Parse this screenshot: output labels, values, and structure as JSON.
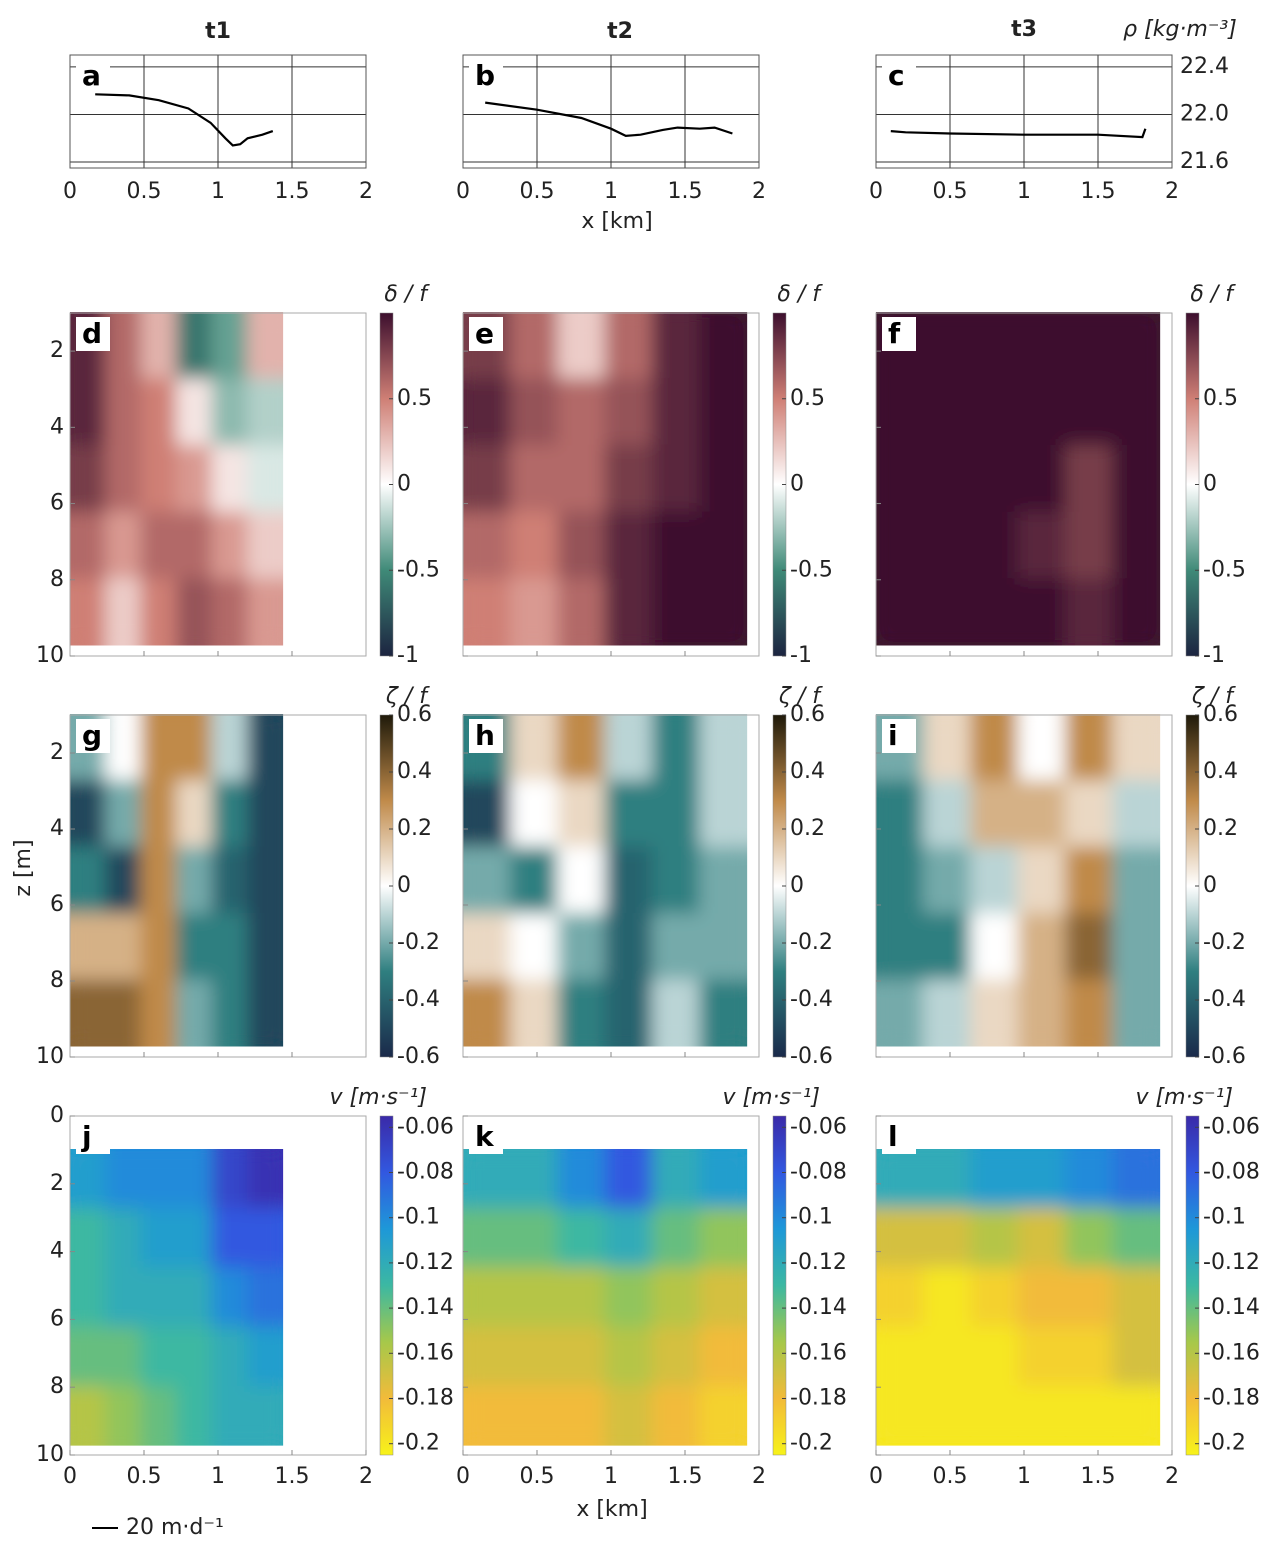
{
  "column_titles": [
    "t1",
    "t2",
    "t3"
  ],
  "x_label": "x [km]",
  "z_label": "z [m]",
  "quiver_key": "20 m·d⁻¹",
  "chart_data": [
    {
      "type": "line",
      "panel": "a",
      "color": "#000000",
      "grid": true,
      "x": [
        0.17,
        0.4,
        0.6,
        0.8,
        0.95,
        1.05,
        1.1,
        1.15,
        1.2,
        1.3,
        1.37
      ],
      "values": [
        22.17,
        22.16,
        22.12,
        22.05,
        21.93,
        21.8,
        21.74,
        21.75,
        21.8,
        21.83,
        21.86
      ],
      "xlim": [
        0,
        2
      ],
      "xticks": [
        0,
        0.5,
        1,
        1.5,
        2
      ],
      "ylim": [
        21.55,
        22.5
      ],
      "yticks": [
        21.6,
        {
          "value": 22,
          "label": "22.0"
        },
        22.4
      ]
    },
    {
      "type": "line",
      "panel": "b",
      "color": "#000000",
      "grid": true,
      "x": [
        0.15,
        0.5,
        0.8,
        1.0,
        1.1,
        1.2,
        1.35,
        1.45,
        1.6,
        1.7,
        1.82
      ],
      "values": [
        22.1,
        22.04,
        21.97,
        21.88,
        21.82,
        21.83,
        21.87,
        21.89,
        21.88,
        21.89,
        21.84
      ],
      "xlim": [
        0,
        2
      ],
      "xticks": [
        0,
        0.5,
        1,
        1.5,
        2
      ],
      "ylim": [
        21.55,
        22.5
      ],
      "yticks": [
        21.6,
        {
          "value": 22,
          "label": "22.0"
        },
        22.4
      ]
    },
    {
      "type": "line",
      "panel": "c",
      "color": "#000000",
      "grid": true,
      "y_label": "ρ [kg·m⁻³]",
      "x": [
        0.1,
        0.2,
        0.5,
        1,
        1.5,
        1.8,
        1.82
      ],
      "values": [
        21.86,
        21.85,
        21.84,
        21.83,
        21.83,
        21.81,
        21.88
      ],
      "xlim": [
        0,
        2
      ],
      "xticks": [
        0,
        0.5,
        1,
        1.5,
        2
      ],
      "ylim": [
        21.55,
        22.5
      ],
      "yticks": [
        21.6,
        {
          "value": 22,
          "label": "22.0"
        },
        22.4
      ]
    },
    {
      "type": "heatmap",
      "panel": "d",
      "x": [
        0.12,
        0.36,
        0.6,
        0.84,
        1.08,
        1.32
      ],
      "z": [
        1.85,
        3.6,
        5.35,
        7.1,
        8.85
      ],
      "values": [
        [
          0.9,
          0.6,
          0.3,
          -0.6,
          -0.4,
          0.3
        ],
        [
          0.9,
          0.6,
          0.5,
          0.1,
          -0.3,
          -0.2
        ],
        [
          0.8,
          0.6,
          0.5,
          0.4,
          0.1,
          -0.1
        ],
        [
          0.6,
          0.4,
          0.6,
          0.6,
          0.4,
          0.2
        ],
        [
          0.5,
          0.2,
          0.5,
          0.7,
          0.6,
          0.4
        ]
      ],
      "xlim": [
        0,
        2
      ],
      "xticks": [
        0.5,
        1,
        1.5
      ],
      "ylim": [
        10,
        1
      ],
      "yticks": [
        2,
        4,
        6,
        8,
        10
      ],
      "colorbar": {
        "label": "δ / f",
        "lim": [
          -1,
          1
        ],
        "ticks": [
          -1,
          -0.5,
          0,
          0.5
        ],
        "colormap": [
          "#1c2440",
          "#3f8a78",
          "#ffffff",
          "#cf7f75",
          "#3d0f2e"
        ]
      }
    },
    {
      "type": "heatmap",
      "panel": "e",
      "x": [
        0.16,
        0.48,
        0.8,
        1.12,
        1.44,
        1.76
      ],
      "z": [
        1.85,
        3.6,
        5.35,
        7.1,
        8.85
      ],
      "values": [
        [
          0.8,
          0.6,
          0.2,
          0.6,
          0.9,
          1
        ],
        [
          0.9,
          0.7,
          0.6,
          0.7,
          0.9,
          1
        ],
        [
          0.8,
          0.6,
          0.6,
          0.8,
          0.9,
          1
        ],
        [
          0.6,
          0.5,
          0.7,
          0.9,
          1,
          1
        ],
        [
          0.5,
          0.4,
          0.6,
          0.9,
          1,
          1
        ]
      ],
      "xlim": [
        0,
        2
      ],
      "xticks": [
        0.5,
        1,
        1.5
      ],
      "ylim": [
        10,
        1
      ],
      "yticks": [
        2,
        4,
        6,
        8,
        10
      ],
      "colorbar": {
        "label": "δ / f",
        "lim": [
          -1,
          1
        ],
        "ticks": [
          -1,
          -0.5,
          0,
          0.5
        ],
        "colormap": [
          "#1c2440",
          "#3f8a78",
          "#ffffff",
          "#cf7f75",
          "#3d0f2e"
        ]
      }
    },
    {
      "type": "heatmap",
      "panel": "f",
      "x": [
        0.16,
        0.48,
        0.8,
        1.12,
        1.44,
        1.76
      ],
      "z": [
        1.85,
        3.6,
        5.35,
        7.1,
        8.85
      ],
      "values": [
        [
          1,
          1,
          1,
          1,
          1,
          1
        ],
        [
          1,
          1,
          1,
          1,
          1,
          1
        ],
        [
          1,
          1,
          1,
          1,
          0.8,
          1
        ],
        [
          1,
          1,
          1,
          0.9,
          0.8,
          1
        ],
        [
          1,
          1,
          1,
          1,
          0.9,
          1
        ]
      ],
      "xlim": [
        0,
        2
      ],
      "xticks": [
        0.5,
        1,
        1.5
      ],
      "ylim": [
        10,
        1
      ],
      "yticks": [
        2,
        4,
        6,
        8,
        10
      ],
      "colorbar": {
        "label": "δ / f",
        "lim": [
          -1,
          1
        ],
        "ticks": [
          -1,
          -0.5,
          0,
          0.5
        ],
        "colormap": [
          "#1c2440",
          "#3f8a78",
          "#ffffff",
          "#cf7f75",
          "#3d0f2e"
        ]
      }
    },
    {
      "type": "heatmap",
      "panel": "g",
      "x": [
        0.12,
        0.36,
        0.6,
        0.84,
        1.08,
        1.32
      ],
      "z": [
        1.85,
        3.6,
        5.35,
        7.1,
        8.85
      ],
      "values": [
        [
          -0.2,
          0,
          0.3,
          0.3,
          -0.1,
          -0.5
        ],
        [
          -0.5,
          -0.2,
          0.3,
          0.1,
          -0.3,
          -0.5
        ],
        [
          -0.3,
          -0.5,
          0.3,
          -0.2,
          -0.4,
          -0.5
        ],
        [
          0.2,
          0.2,
          0.3,
          -0.3,
          -0.3,
          -0.5
        ],
        [
          0.4,
          0.4,
          0.3,
          -0.2,
          -0.3,
          -0.5
        ]
      ],
      "xlim": [
        0,
        2
      ],
      "xticks": [
        0.5,
        1,
        1.5
      ],
      "ylim": [
        10,
        1
      ],
      "yticks": [
        2,
        4,
        6,
        8,
        10
      ],
      "colorbar": {
        "label": "ζ / f",
        "lim": [
          -0.6,
          0.6
        ],
        "ticks": [
          -0.6,
          -0.4,
          -0.2,
          0,
          0.2,
          0.4,
          0.6
        ],
        "colormap": [
          "#1a2a4a",
          "#2f7f80",
          "#ffffff",
          "#c08a4a",
          "#1f1a0a"
        ]
      }
    },
    {
      "type": "heatmap",
      "panel": "h",
      "x": [
        0.16,
        0.48,
        0.8,
        1.12,
        1.44,
        1.76
      ],
      "z": [
        1.85,
        3.6,
        5.35,
        7.1,
        8.85
      ],
      "values": [
        [
          -0.3,
          0.1,
          0.3,
          -0.1,
          -0.3,
          -0.1
        ],
        [
          -0.5,
          0,
          0.1,
          -0.3,
          -0.3,
          -0.1
        ],
        [
          -0.2,
          -0.3,
          0,
          -0.4,
          -0.3,
          -0.2
        ],
        [
          0.1,
          0,
          -0.2,
          -0.4,
          -0.2,
          -0.2
        ],
        [
          0.3,
          0.1,
          -0.3,
          -0.4,
          -0.1,
          -0.3
        ]
      ],
      "xlim": [
        0,
        2
      ],
      "xticks": [
        0.5,
        1,
        1.5
      ],
      "ylim": [
        10,
        1
      ],
      "yticks": [
        2,
        4,
        6,
        8,
        10
      ],
      "colorbar": {
        "label": "ζ / f",
        "lim": [
          -0.6,
          0.6
        ],
        "ticks": [
          -0.6,
          -0.4,
          -0.2,
          0,
          0.2,
          0.4,
          0.6
        ],
        "colormap": [
          "#1a2a4a",
          "#2f7f80",
          "#ffffff",
          "#c08a4a",
          "#1f1a0a"
        ]
      }
    },
    {
      "type": "heatmap",
      "panel": "i",
      "x": [
        0.16,
        0.48,
        0.8,
        1.12,
        1.44,
        1.76
      ],
      "z": [
        1.85,
        3.6,
        5.35,
        7.1,
        8.85
      ],
      "values": [
        [
          -0.2,
          0.1,
          0.3,
          0,
          0.3,
          0.1
        ],
        [
          -0.3,
          -0.1,
          0.2,
          0.2,
          0.1,
          -0.1
        ],
        [
          -0.3,
          -0.2,
          -0.1,
          0.1,
          0.3,
          -0.2
        ],
        [
          -0.3,
          -0.3,
          0,
          0.2,
          0.4,
          -0.2
        ],
        [
          -0.2,
          -0.1,
          0.1,
          0.2,
          0.3,
          -0.2
        ]
      ],
      "xlim": [
        0,
        2
      ],
      "xticks": [
        0.5,
        1,
        1.5
      ],
      "ylim": [
        10,
        1
      ],
      "yticks": [
        2,
        4,
        6,
        8,
        10
      ],
      "colorbar": {
        "label": "ζ / f",
        "lim": [
          -0.6,
          0.6
        ],
        "ticks": [
          -0.6,
          -0.4,
          -0.2,
          0,
          0.2,
          0.4,
          0.6
        ],
        "colormap": [
          "#1a2a4a",
          "#2f7f80",
          "#ffffff",
          "#c08a4a",
          "#1f1a0a"
        ]
      }
    },
    {
      "type": "heatmap",
      "panel": "j",
      "x": [
        0.12,
        0.36,
        0.6,
        0.84,
        1.08,
        1.32
      ],
      "z": [
        1.85,
        3.6,
        5.35,
        7.1,
        8.85
      ],
      "values": [
        [
          -0.11,
          -0.1,
          -0.1,
          -0.1,
          -0.07,
          -0.06
        ],
        [
          -0.13,
          -0.12,
          -0.11,
          -0.11,
          -0.08,
          -0.08
        ],
        [
          -0.13,
          -0.12,
          -0.12,
          -0.12,
          -0.1,
          -0.09
        ],
        [
          -0.14,
          -0.14,
          -0.13,
          -0.13,
          -0.12,
          -0.11
        ],
        [
          -0.16,
          -0.15,
          -0.14,
          -0.13,
          -0.12,
          -0.12
        ]
      ],
      "xlim": [
        0,
        2
      ],
      "xticks": [
        0,
        0.5,
        1,
        1.5,
        2
      ],
      "ylim": [
        10,
        0
      ],
      "yticks": [
        0,
        2,
        4,
        6,
        8,
        10
      ],
      "colorbar": {
        "label": "v [m·s⁻¹]",
        "lim": [
          -0.205,
          -0.055
        ],
        "ticks": [
          -0.2,
          -0.18,
          -0.16,
          -0.14,
          -0.12,
          -0.1,
          -0.08,
          -0.06
        ],
        "colormap": [
          "#f7f21a",
          "#f2bb3a",
          "#a6c84a",
          "#3cb8a2",
          "#1e98d8",
          "#3258e0",
          "#3a2aa8"
        ]
      }
    },
    {
      "type": "heatmap",
      "panel": "k",
      "x": [
        0.16,
        0.48,
        0.8,
        1.12,
        1.44,
        1.76
      ],
      "z": [
        1.85,
        3.6,
        5.35,
        7.1,
        8.85
      ],
      "values": [
        [
          -0.12,
          -0.12,
          -0.1,
          -0.08,
          -0.12,
          -0.11
        ],
        [
          -0.14,
          -0.14,
          -0.13,
          -0.12,
          -0.14,
          -0.15
        ],
        [
          -0.16,
          -0.16,
          -0.16,
          -0.15,
          -0.16,
          -0.17
        ],
        [
          -0.17,
          -0.17,
          -0.17,
          -0.16,
          -0.17,
          -0.18
        ],
        [
          -0.18,
          -0.18,
          -0.18,
          -0.17,
          -0.18,
          -0.19
        ]
      ],
      "xlim": [
        0,
        2
      ],
      "xticks": [
        0,
        0.5,
        1,
        1.5,
        2
      ],
      "ylim": [
        10,
        0
      ],
      "yticks": [
        0,
        2,
        4,
        6,
        8,
        10
      ],
      "colorbar": {
        "label": "v [m·s⁻¹]",
        "lim": [
          -0.205,
          -0.055
        ],
        "ticks": [
          -0.2,
          -0.18,
          -0.16,
          -0.14,
          -0.12,
          -0.1,
          -0.08,
          -0.06
        ],
        "colormap": [
          "#f7f21a",
          "#f2bb3a",
          "#a6c84a",
          "#3cb8a2",
          "#1e98d8",
          "#3258e0",
          "#3a2aa8"
        ]
      }
    },
    {
      "type": "heatmap",
      "panel": "l",
      "x": [
        0.16,
        0.48,
        0.8,
        1.12,
        1.44,
        1.76
      ],
      "z": [
        1.85,
        3.6,
        5.35,
        7.1,
        8.85
      ],
      "values": [
        [
          -0.12,
          -0.12,
          -0.11,
          -0.11,
          -0.1,
          -0.09
        ],
        [
          -0.17,
          -0.17,
          -0.16,
          -0.17,
          -0.15,
          -0.14
        ],
        [
          -0.19,
          -0.2,
          -0.19,
          -0.18,
          -0.18,
          -0.17
        ],
        [
          -0.2,
          -0.2,
          -0.2,
          -0.19,
          -0.19,
          -0.17
        ],
        [
          -0.2,
          -0.2,
          -0.2,
          -0.2,
          -0.2,
          -0.2
        ]
      ],
      "xlim": [
        0,
        2
      ],
      "xticks": [
        0,
        0.5,
        1,
        1.5,
        2
      ],
      "ylim": [
        10,
        0
      ],
      "yticks": [
        0,
        2,
        4,
        6,
        8,
        10
      ],
      "colorbar": {
        "label": "v [m·s⁻¹]",
        "lim": [
          -0.205,
          -0.055
        ],
        "ticks": [
          -0.2,
          -0.18,
          -0.16,
          -0.14,
          -0.12,
          -0.1,
          -0.08,
          -0.06
        ],
        "colormap": [
          "#f7f21a",
          "#f2bb3a",
          "#a6c84a",
          "#3cb8a2",
          "#1e98d8",
          "#3258e0",
          "#3a2aa8"
        ]
      }
    }
  ]
}
